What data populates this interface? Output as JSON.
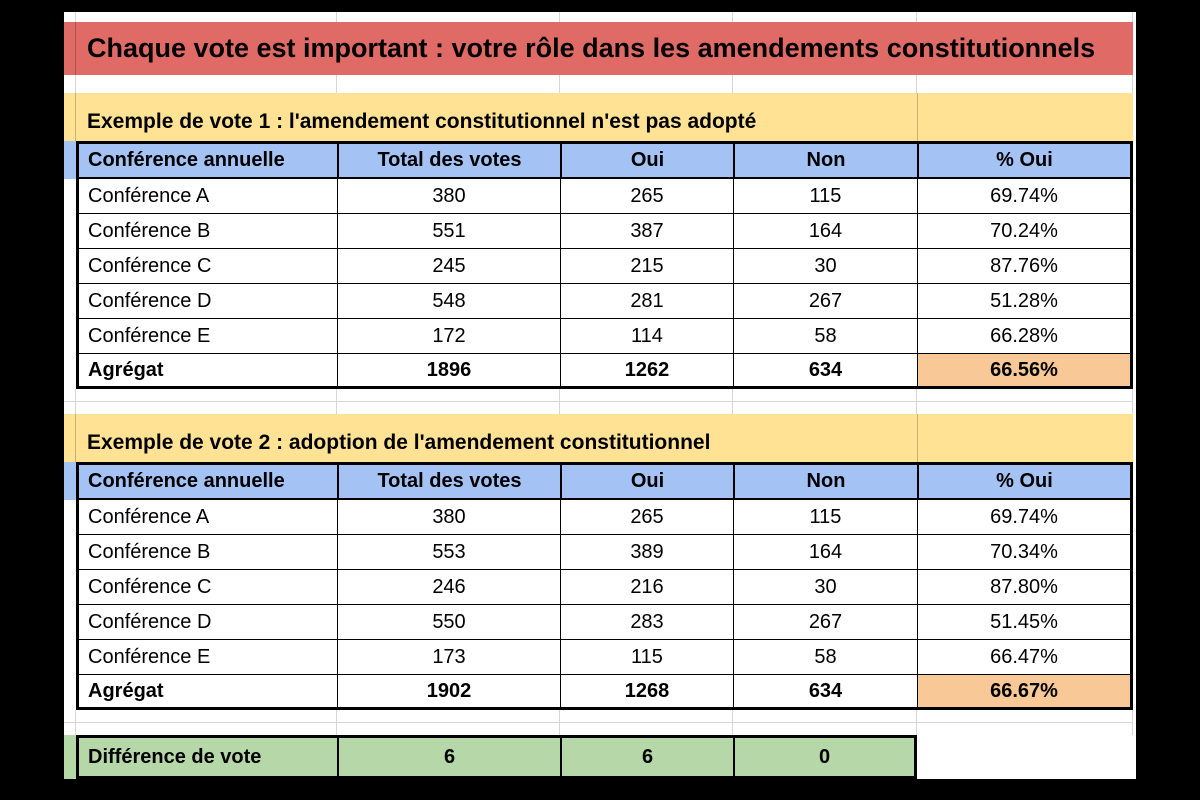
{
  "banner": {
    "title": "Chaque vote est important : votre rôle dans les amendements constitutionnels"
  },
  "columns": [
    "Conférence annuelle",
    "Total des votes",
    "Oui",
    "Non",
    "% Oui"
  ],
  "tables": [
    {
      "section_title": "Exemple de vote 1 : l'amendement constitutionnel n'est pas adopté",
      "rows": [
        {
          "label": "Conférence A",
          "total": "380",
          "oui": "265",
          "non": "115",
          "pct": "69.74%"
        },
        {
          "label": "Conférence B",
          "total": "551",
          "oui": "387",
          "non": "164",
          "pct": "70.24%"
        },
        {
          "label": "Conférence C",
          "total": "245",
          "oui": "215",
          "non": "30",
          "pct": "87.76%"
        },
        {
          "label": "Conférence D",
          "total": "548",
          "oui": "281",
          "non": "267",
          "pct": "51.28%"
        },
        {
          "label": "Conférence E",
          "total": "172",
          "oui": "114",
          "non": "58",
          "pct": "66.28%"
        }
      ],
      "aggregate": {
        "label": "Agrégat",
        "total": "1896",
        "oui": "1262",
        "non": "634",
        "pct": "66.56%"
      }
    },
    {
      "section_title": "Exemple de vote 2 : adoption de l'amendement constitutionnel",
      "rows": [
        {
          "label": "Conférence A",
          "total": "380",
          "oui": "265",
          "non": "115",
          "pct": "69.74%"
        },
        {
          "label": "Conférence B",
          "total": "553",
          "oui": "389",
          "non": "164",
          "pct": "70.34%"
        },
        {
          "label": "Conférence C",
          "total": "246",
          "oui": "216",
          "non": "30",
          "pct": "87.80%"
        },
        {
          "label": "Conférence D",
          "total": "550",
          "oui": "283",
          "non": "267",
          "pct": "51.45%"
        },
        {
          "label": "Conférence E",
          "total": "173",
          "oui": "115",
          "non": "58",
          "pct": "66.47%"
        }
      ],
      "aggregate": {
        "label": "Agrégat",
        "total": "1902",
        "oui": "1268",
        "non": "634",
        "pct": "66.67%"
      }
    }
  ],
  "difference": {
    "label": "Différence de vote",
    "total": "6",
    "oui": "6",
    "non": "0"
  },
  "colors": {
    "banner_red": "#DF6A66",
    "section_yellow": "#FFE294",
    "header_blue": "#A4C2F4",
    "aggregate_orange": "#F8C996",
    "difference_green": "#B6D7A8",
    "gridline_gray": "#D6D6D6",
    "table_border": "#000000",
    "matte_background": "#000000"
  }
}
